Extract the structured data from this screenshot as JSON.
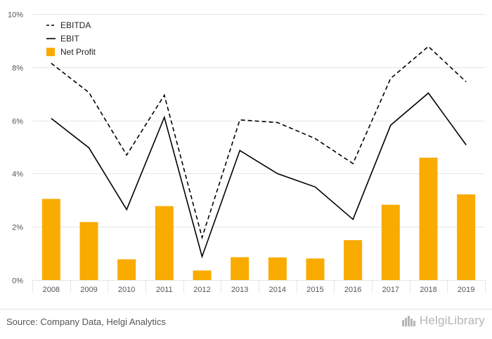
{
  "chart_data": {
    "type": "bar",
    "title": "",
    "xlabel": "",
    "ylabel": "",
    "categories": [
      "2008",
      "2009",
      "2010",
      "2011",
      "2012",
      "2013",
      "2014",
      "2015",
      "2016",
      "2017",
      "2018",
      "2019"
    ],
    "ylim": [
      0,
      10
    ],
    "yticks": [
      0,
      2,
      4,
      6,
      8,
      10
    ],
    "ytick_labels": [
      "0%",
      "2%",
      "4%",
      "6%",
      "8%",
      "10%"
    ],
    "grid": true,
    "legend_position": "top-left",
    "series": [
      {
        "name": "EBITDA",
        "kind": "line",
        "style": "dashed",
        "color": "#000000",
        "values": [
          8.15,
          7.05,
          4.7,
          6.95,
          1.6,
          6.02,
          5.92,
          5.32,
          4.38,
          7.58,
          8.78,
          7.45
        ]
      },
      {
        "name": "EBIT",
        "kind": "line",
        "style": "solid",
        "color": "#000000",
        "values": [
          6.08,
          4.97,
          2.65,
          6.12,
          0.88,
          4.87,
          4.0,
          3.5,
          2.28,
          5.82,
          7.03,
          5.08
        ]
      },
      {
        "name": "Net Profit",
        "kind": "bar",
        "color": "#f9ab00",
        "values": [
          3.05,
          2.18,
          0.78,
          2.78,
          0.36,
          0.86,
          0.85,
          0.81,
          1.5,
          2.83,
          4.6,
          3.22
        ]
      }
    ]
  },
  "footer": {
    "source": "Source: Company Data, Helgi Analytics",
    "brand": "HelgiLibrary"
  }
}
